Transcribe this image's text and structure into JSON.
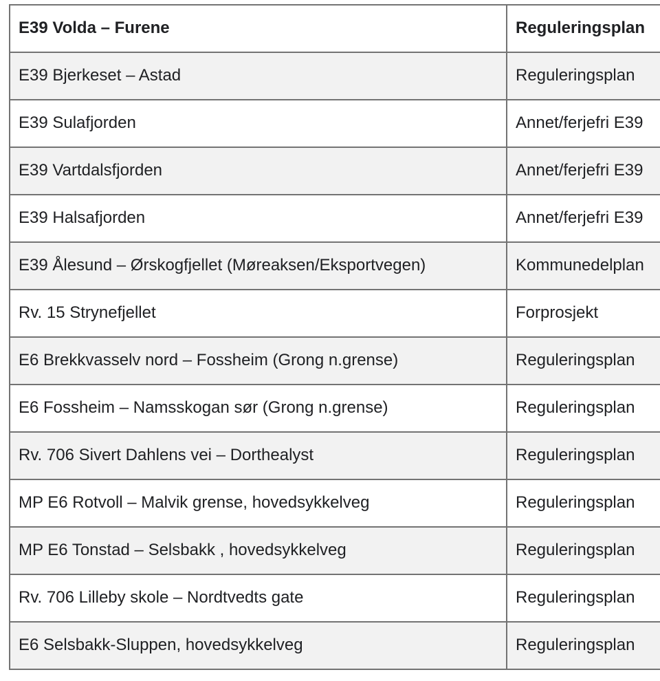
{
  "colors": {
    "border": "#737373",
    "row_alt": "#f2f2f2",
    "text": "#202124",
    "background": "#ffffff"
  },
  "table": {
    "description": "Road project plan status table",
    "columns": [
      "project",
      "plan"
    ],
    "rows": [
      {
        "project": "E39 Volda – Furene",
        "plan": "Reguleringsplan"
      },
      {
        "project": "E39 Bjerkeset – Astad",
        "plan": "Reguleringsplan"
      },
      {
        "project": "E39 Sulafjorden",
        "plan": "Annet/ferjefri E39"
      },
      {
        "project": "E39 Vartdalsfjorden",
        "plan": "Annet/ferjefri E39"
      },
      {
        "project": "E39 Halsafjorden",
        "plan": "Annet/ferjefri E39"
      },
      {
        "project": "E39 Ålesund – Ørskogfjellet (Møreaksen/Eksportvegen)",
        "plan": "Kommunedelplan"
      },
      {
        "project": "Rv. 15 Strynefjellet",
        "plan": "Forprosjekt"
      },
      {
        "project": "E6 Brekkvasselv nord – Fossheim (Grong n.grense)",
        "plan": "Reguleringsplan"
      },
      {
        "project": "E6 Fossheim – Namsskogan sør (Grong n.grense)",
        "plan": "Reguleringsplan"
      },
      {
        "project": "Rv. 706 Sivert Dahlens vei – Dorthealyst",
        "plan": "Reguleringsplan"
      },
      {
        "project": "MP E6 Rotvoll – Malvik grense, hovedsykkelveg",
        "plan": "Reguleringsplan"
      },
      {
        "project": "MP E6 Tonstad – Selsbakk , hovedsykkelveg",
        "plan": "Reguleringsplan"
      },
      {
        "project": "Rv. 706 Lilleby skole – Nordtvedts gate",
        "plan": "Reguleringsplan"
      },
      {
        "project": "E6 Selsbakk-Sluppen, hovedsykkelveg",
        "plan": "Reguleringsplan"
      }
    ]
  }
}
